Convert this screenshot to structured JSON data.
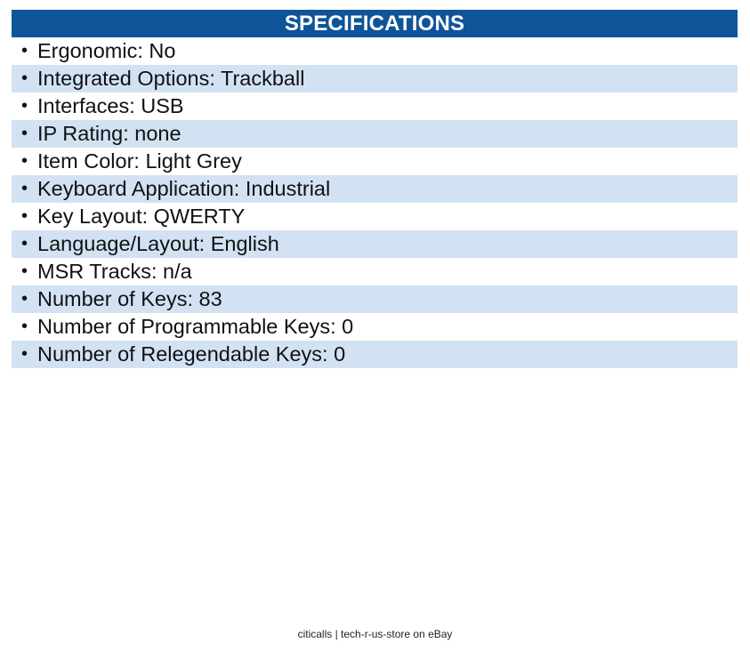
{
  "header": {
    "title": "SPECIFICATIONS"
  },
  "bullet": "•",
  "specs": [
    "Ergonomic: No",
    "Integrated Options: Trackball",
    "Interfaces: USB",
    "IP Rating: none",
    "Item Color: Light Grey",
    "Keyboard Application: Industrial",
    "Key Layout: QWERTY",
    "Language/Layout: English",
    "MSR Tracks: n/a",
    "Number of Keys: 83",
    "Number of Programmable Keys: 0",
    "Number of Relegendable Keys: 0"
  ],
  "footer": {
    "text": "citicalls | tech-r-us-store on eBay"
  },
  "colors": {
    "header_bg": "#0f5499",
    "stripe_bg": "#d2e2f3"
  }
}
